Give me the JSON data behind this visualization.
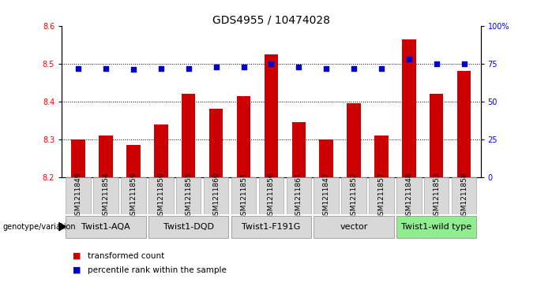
{
  "title": "GDS4955 / 10474028",
  "samples": [
    "GSM1211849",
    "GSM1211854",
    "GSM1211859",
    "GSM1211850",
    "GSM1211855",
    "GSM1211860",
    "GSM1211851",
    "GSM1211856",
    "GSM1211861",
    "GSM1211847",
    "GSM1211852",
    "GSM1211857",
    "GSM1211848",
    "GSM1211853",
    "GSM1211858"
  ],
  "transformed_count": [
    8.3,
    8.31,
    8.285,
    8.34,
    8.42,
    8.38,
    8.415,
    8.525,
    8.345,
    8.3,
    8.395,
    8.31,
    8.565,
    8.42,
    8.48
  ],
  "percentile_rank": [
    72,
    72,
    71,
    72,
    72,
    73,
    73,
    75,
    73,
    72,
    72,
    72,
    78,
    75,
    75
  ],
  "groups": [
    {
      "label": "Twist1-AQA",
      "start": 0,
      "end": 3
    },
    {
      "label": "Twist1-DQD",
      "start": 3,
      "end": 6
    },
    {
      "label": "Twist1-F191G",
      "start": 6,
      "end": 9
    },
    {
      "label": "vector",
      "start": 9,
      "end": 12
    },
    {
      "label": "Twist1-wild type",
      "start": 12,
      "end": 15
    }
  ],
  "group_colors": [
    "#d8d8d8",
    "#d8d8d8",
    "#d8d8d8",
    "#d8d8d8",
    "#90EE90"
  ],
  "ylim_left": [
    8.2,
    8.6
  ],
  "ylim_right": [
    0,
    100
  ],
  "yticks_left": [
    8.2,
    8.3,
    8.4,
    8.5,
    8.6
  ],
  "yticks_right": [
    0,
    25,
    50,
    75,
    100
  ],
  "ytick_labels_right": [
    "0",
    "25",
    "50",
    "75",
    "100%"
  ],
  "bar_color": "#cc0000",
  "dot_color": "#0000cc",
  "bar_bottom": 8.2,
  "hline_values": [
    8.3,
    8.4,
    8.5
  ],
  "legend_items": [
    {
      "color": "#cc0000",
      "label": "transformed count"
    },
    {
      "color": "#0000cc",
      "label": "percentile rank within the sample"
    }
  ],
  "genotype_label": "genotype/variation",
  "title_fontsize": 10,
  "tick_fontsize": 7,
  "group_fontsize": 8,
  "sample_fontsize": 6.5
}
